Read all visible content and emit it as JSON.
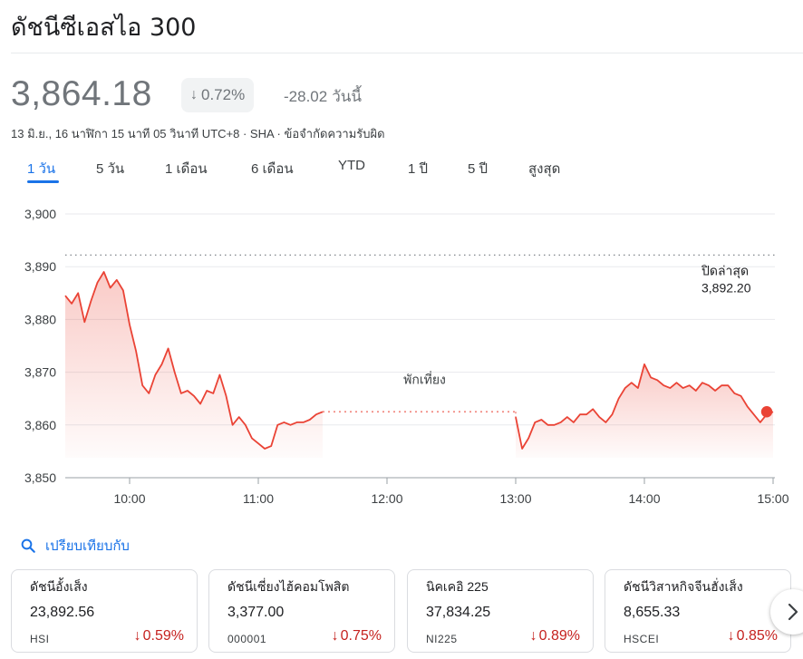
{
  "header": {
    "title": "ดัชนีซีเอสไอ 300",
    "price": "3,864.18",
    "change_pct": "0.72%",
    "change_abs": "-28.02",
    "change_period": "วันนี้",
    "meta_line": "13 มิ.ย., 16 นาฬิกา 15 นาที 05 วินาที UTC+8 · SHA · ข้อจำกัดความรับผิด"
  },
  "tabs": [
    {
      "label": "1 วัน",
      "active": true
    },
    {
      "label": "5 วัน",
      "active": false
    },
    {
      "label": "1 เดือน",
      "active": false
    },
    {
      "label": "6 เดือน",
      "active": false
    },
    {
      "label": "YTD",
      "active": false
    },
    {
      "label": "1 ปี",
      "active": false
    },
    {
      "label": "5 ปี",
      "active": false
    },
    {
      "label": "สูงสุด",
      "active": false
    }
  ],
  "colors": {
    "line": "#ea4335",
    "negative": "#c5221f",
    "accent": "#1a73e8",
    "grid": "#e8eaed"
  },
  "chart_data": {
    "type": "line",
    "ylim": [
      3850,
      3900
    ],
    "y_ticks": [
      "3,900",
      "3,890",
      "3,880",
      "3,870",
      "3,860",
      "3,850"
    ],
    "x_ticks": [
      "10:00",
      "11:00",
      "12:00",
      "13:00",
      "14:00",
      "15:00"
    ],
    "grid": true,
    "previous_close": {
      "label": "ปิดล่าสุด",
      "value_label": "3,892.20",
      "value": 3892.2
    },
    "break_label": "พักเที่ยง",
    "series": [
      {
        "points": [
          [
            "09:30",
            3884.5
          ],
          [
            "09:33",
            3883.0
          ],
          [
            "09:36",
            3885.0
          ],
          [
            "09:39",
            3879.5
          ],
          [
            "09:42",
            3883.5
          ],
          [
            "09:45",
            3887.0
          ],
          [
            "09:48",
            3889.0
          ],
          [
            "09:51",
            3886.0
          ],
          [
            "09:54",
            3887.5
          ],
          [
            "09:57",
            3885.5
          ],
          [
            "10:00",
            3879.0
          ],
          [
            "10:03",
            3874.0
          ],
          [
            "10:06",
            3867.5
          ],
          [
            "10:09",
            3866.0
          ],
          [
            "10:12",
            3869.5
          ],
          [
            "10:15",
            3871.5
          ],
          [
            "10:18",
            3874.5
          ],
          [
            "10:21",
            3870.0
          ],
          [
            "10:24",
            3866.0
          ],
          [
            "10:27",
            3866.5
          ],
          [
            "10:30",
            3865.5
          ],
          [
            "10:33",
            3864.0
          ],
          [
            "10:36",
            3866.5
          ],
          [
            "10:39",
            3866.0
          ],
          [
            "10:42",
            3869.5
          ],
          [
            "10:45",
            3865.5
          ],
          [
            "10:48",
            3860.0
          ],
          [
            "10:51",
            3861.5
          ],
          [
            "10:54",
            3860.0
          ],
          [
            "10:57",
            3857.5
          ],
          [
            "11:00",
            3856.5
          ],
          [
            "11:03",
            3855.5
          ],
          [
            "11:06",
            3856.0
          ],
          [
            "11:09",
            3860.0
          ],
          [
            "11:12",
            3860.5
          ],
          [
            "11:15",
            3860.0
          ],
          [
            "11:18",
            3860.5
          ],
          [
            "11:21",
            3860.5
          ],
          [
            "11:24",
            3861.0
          ],
          [
            "11:27",
            3862.0
          ],
          [
            "11:30",
            3862.5
          ],
          [
            "13:00",
            3861.5
          ],
          [
            "13:03",
            3855.5
          ],
          [
            "13:06",
            3857.5
          ],
          [
            "13:09",
            3860.5
          ],
          [
            "13:12",
            3861.0
          ],
          [
            "13:15",
            3860.0
          ],
          [
            "13:18",
            3860.0
          ],
          [
            "13:21",
            3860.5
          ],
          [
            "13:24",
            3861.5
          ],
          [
            "13:27",
            3860.5
          ],
          [
            "13:30",
            3862.0
          ],
          [
            "13:33",
            3862.0
          ],
          [
            "13:36",
            3863.0
          ],
          [
            "13:39",
            3861.5
          ],
          [
            "13:42",
            3860.5
          ],
          [
            "13:45",
            3862.0
          ],
          [
            "13:48",
            3865.0
          ],
          [
            "13:51",
            3867.0
          ],
          [
            "13:54",
            3868.0
          ],
          [
            "13:57",
            3867.0
          ],
          [
            "14:00",
            3871.5
          ],
          [
            "14:03",
            3869.0
          ],
          [
            "14:06",
            3868.5
          ],
          [
            "14:09",
            3867.5
          ],
          [
            "14:12",
            3867.0
          ],
          [
            "14:15",
            3868.0
          ],
          [
            "14:18",
            3867.0
          ],
          [
            "14:21",
            3867.5
          ],
          [
            "14:24",
            3866.5
          ],
          [
            "14:27",
            3868.0
          ],
          [
            "14:30",
            3867.5
          ],
          [
            "14:33",
            3866.5
          ],
          [
            "14:36",
            3867.5
          ],
          [
            "14:39",
            3867.5
          ],
          [
            "14:42",
            3866.0
          ],
          [
            "14:45",
            3865.5
          ],
          [
            "14:48",
            3863.5
          ],
          [
            "14:51",
            3862.0
          ],
          [
            "14:54",
            3860.5
          ],
          [
            "14:57",
            3862.0
          ],
          [
            "15:00",
            3862.5
          ]
        ]
      }
    ]
  },
  "compare": {
    "label": "เปรียบเทียบกับ",
    "icon": "search-icon"
  },
  "cards": [
    {
      "name": "ดัชนีอั้งเส็ง",
      "value": "23,892.56",
      "symbol": "HSI",
      "change": "0.59%"
    },
    {
      "name": "ดัชนีเซี่ยงไฮ้คอมโพสิต",
      "value": "3,377.00",
      "symbol": "000001",
      "change": "0.75%"
    },
    {
      "name": "นิคเคอิ 225",
      "value": "37,834.25",
      "symbol": "NI225",
      "change": "0.89%"
    },
    {
      "name": "ดัชนีวิสาหกิจจีนฮั่งเส็ง",
      "value": "8,655.33",
      "symbol": "HSCEI",
      "change": "0.85%"
    }
  ],
  "next_button": {
    "icon": "chevron-right-icon"
  }
}
